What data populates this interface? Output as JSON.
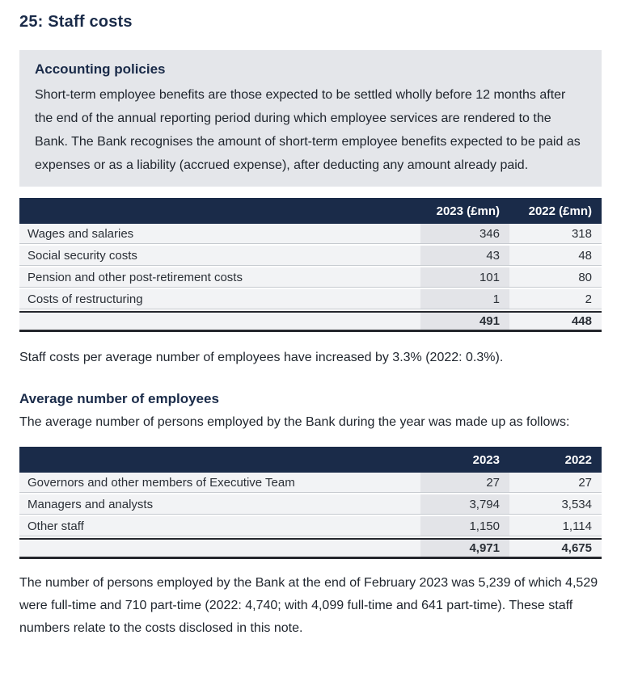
{
  "page": {
    "title": "25: Staff costs"
  },
  "accounting_policies": {
    "heading": "Accounting policies",
    "body": "Short-term employee benefits are those expected to be settled wholly before 12 months after the end of the annual reporting period during which employee services are rendered to the Bank. The Bank recognises the amount of short-term employee benefits expected to be paid as expenses or as a liability (accrued expense), after deducting any amount already paid."
  },
  "staff_costs_table": {
    "columns": [
      "",
      "2023 (£mn)",
      "2022 (£mn)"
    ],
    "rows": [
      {
        "label": "Wages and salaries",
        "y2023": "346",
        "y2022": "318"
      },
      {
        "label": "Social security costs",
        "y2023": "43",
        "y2022": "48"
      },
      {
        "label": "Pension and other post-retirement costs",
        "y2023": "101",
        "y2022": "80"
      },
      {
        "label": "Costs of restructuring",
        "y2023": "1",
        "y2022": "2"
      }
    ],
    "total": {
      "label": "",
      "y2023": "491",
      "y2022": "448"
    }
  },
  "staff_costs_note": "Staff costs per average number of employees have increased by 3.3% (2022: 0.3%).",
  "employees_section": {
    "heading": "Average number of employees",
    "intro": "The average number of persons employed by the Bank during the year was made up as follows:"
  },
  "employees_table": {
    "columns": [
      "",
      "2023",
      "2022"
    ],
    "rows": [
      {
        "label": "Governors and other members of Executive Team",
        "y2023": "27",
        "y2022": "27"
      },
      {
        "label": "Managers and analysts",
        "y2023": "3,794",
        "y2022": "3,534"
      },
      {
        "label": "Other staff",
        "y2023": "1,150",
        "y2022": "1,114"
      }
    ],
    "total": {
      "label": "",
      "y2023": "4,971",
      "y2022": "4,675"
    }
  },
  "closing_note": "The number of persons employed by the Bank at the end of February 2023 was 5,239 of which 4,529 were full-time and 710 part-time (2022: 4,740; with 4,099 full-time and 641 part-time). These staff numbers relate to the costs disclosed in this note.",
  "colors": {
    "navy": "#1a2b49",
    "body_text": "#20262e",
    "box_bg": "#e4e6ea",
    "row_bg": "#f2f3f5",
    "shaded_col_bg": "#e3e4e8",
    "total_border": "#24262c"
  }
}
